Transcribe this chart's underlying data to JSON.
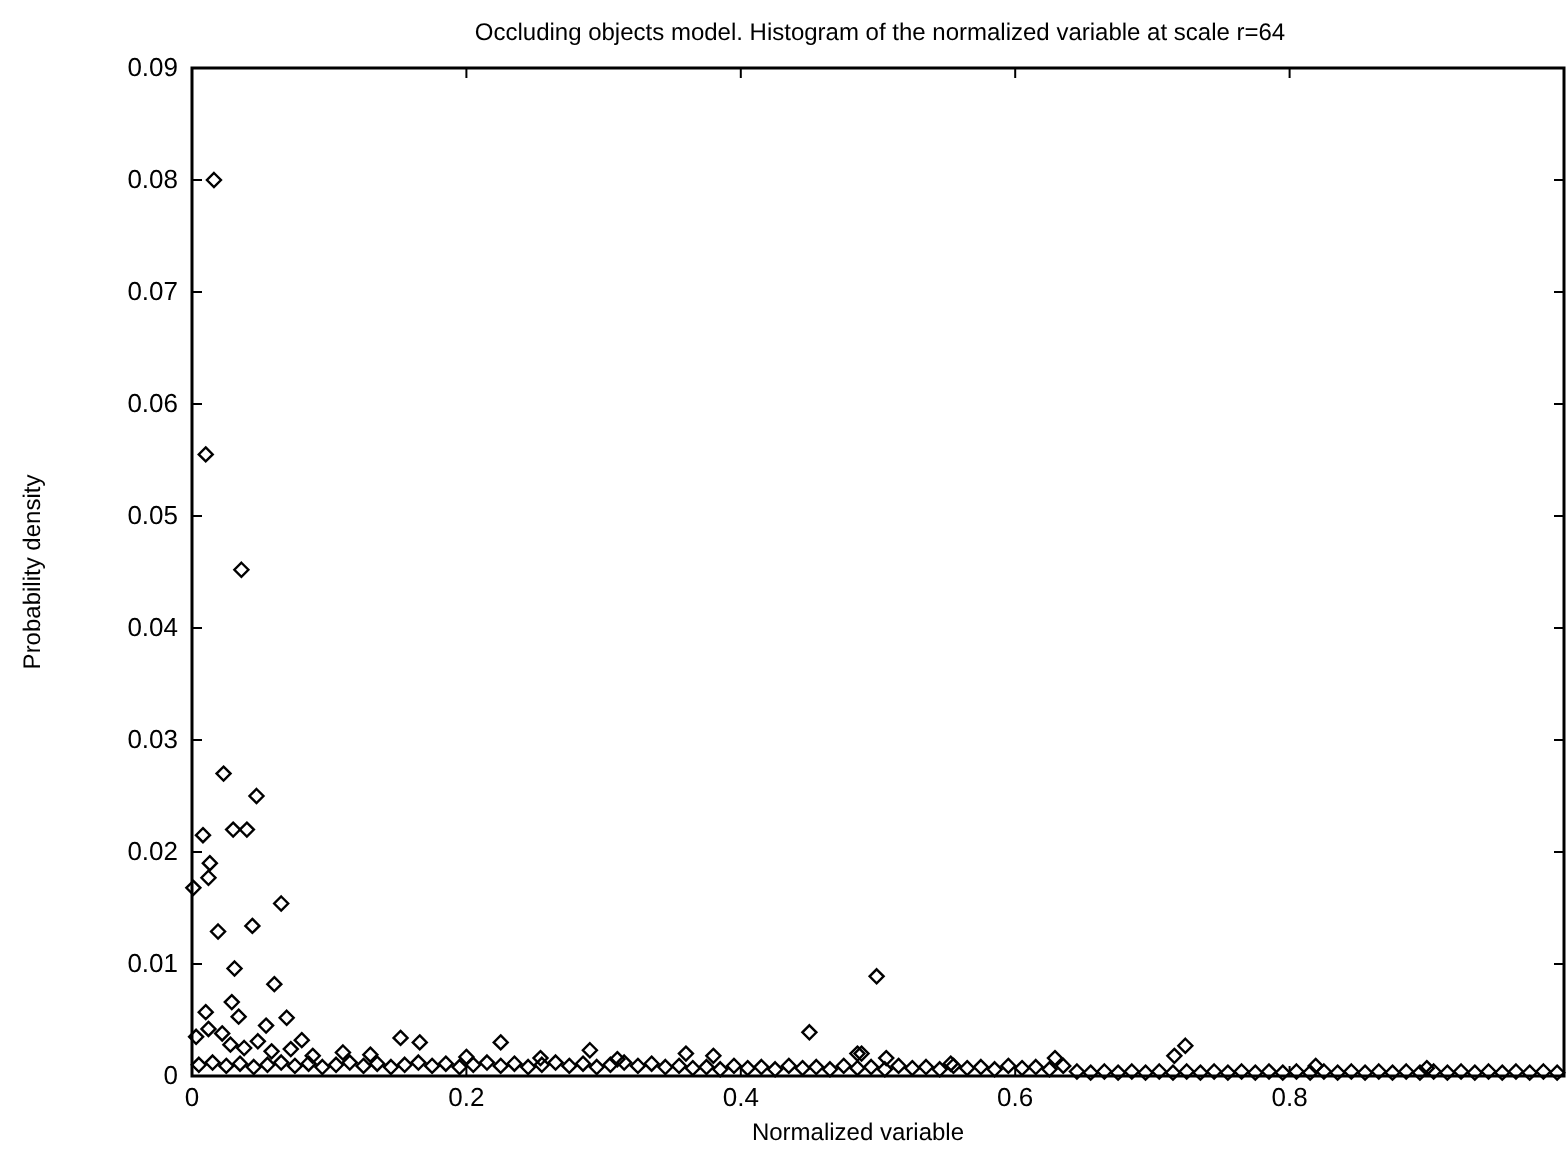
{
  "chart_data": {
    "type": "scatter",
    "title": "Occluding objects model. Histogram of the normalized variable at scale r=64",
    "xlabel": "Normalized variable",
    "ylabel": "Probability density",
    "xlim": [
      0,
      1
    ],
    "ylim": [
      0,
      0.09
    ],
    "xticks": [
      0,
      0.2,
      0.4,
      0.6,
      0.8,
      {
        "value": 1,
        "label": null
      }
    ],
    "yticks": [
      0,
      0.01,
      0.02,
      0.03,
      0.04,
      0.05,
      0.06,
      0.07,
      0.08,
      0.09
    ],
    "marker": "diamond",
    "series": [
      {
        "color": "#000000",
        "x": [
          0.016,
          0.01,
          0.036,
          0.023,
          0.047,
          0.03,
          0.04,
          0.008,
          0.013,
          0.012,
          0.001,
          0.065,
          0.044,
          0.019,
          0.031,
          0.06,
          0.499,
          0.45,
          0.225,
          0.01,
          0.029,
          0.034,
          0.069,
          0.054,
          0.08,
          0.152,
          0.166,
          0.29,
          0.254,
          0.36,
          0.38,
          0.485,
          0.506,
          0.724,
          0.716,
          0.488,
          0.629,
          0.9,
          0.553,
          0.819,
          0.005,
          0.015,
          0.025,
          0.035,
          0.045,
          0.055,
          0.065,
          0.075,
          0.085,
          0.095,
          0.105,
          0.115,
          0.125,
          0.135,
          0.145,
          0.155,
          0.165,
          0.175,
          0.185,
          0.195,
          0.205,
          0.215,
          0.225,
          0.235,
          0.245,
          0.255,
          0.265,
          0.275,
          0.285,
          0.295,
          0.305,
          0.315,
          0.325,
          0.335,
          0.345,
          0.355,
          0.365,
          0.375,
          0.385,
          0.395,
          0.405,
          0.415,
          0.425,
          0.435,
          0.445,
          0.455,
          0.465,
          0.475,
          0.485,
          0.495,
          0.505,
          0.515,
          0.525,
          0.535,
          0.545,
          0.555,
          0.565,
          0.575,
          0.585,
          0.595,
          0.605,
          0.615,
          0.625,
          0.635,
          0.645,
          0.655,
          0.665,
          0.675,
          0.685,
          0.695,
          0.705,
          0.715,
          0.725,
          0.735,
          0.745,
          0.755,
          0.765,
          0.775,
          0.785,
          0.795,
          0.805,
          0.815,
          0.825,
          0.835,
          0.845,
          0.855,
          0.865,
          0.875,
          0.885,
          0.895,
          0.905,
          0.915,
          0.925,
          0.935,
          0.945,
          0.955,
          0.965,
          0.975,
          0.985,
          0.995,
          0.003,
          0.012,
          0.022,
          0.028,
          0.038,
          0.048,
          0.058,
          0.072,
          0.088,
          0.11,
          0.13,
          0.2,
          0.31
        ],
        "values": [
          0.08,
          0.0555,
          0.0452,
          0.027,
          0.025,
          0.022,
          0.022,
          0.0215,
          0.019,
          0.0177,
          0.0168,
          0.0154,
          0.0134,
          0.0129,
          0.0096,
          0.0082,
          0.0089,
          0.0039,
          0.003,
          0.0057,
          0.0066,
          0.0053,
          0.0052,
          0.0045,
          0.0032,
          0.0034,
          0.003,
          0.0023,
          0.0016,
          0.002,
          0.0018,
          0.002,
          0.0016,
          0.0027,
          0.0018,
          0.002,
          0.0016,
          0.0007,
          0.0011,
          0.0009,
          0.001,
          0.0012,
          0.0009,
          0.0011,
          0.0008,
          0.001,
          0.0012,
          0.0009,
          0.0011,
          0.0008,
          0.001,
          0.0012,
          0.0009,
          0.0011,
          0.0008,
          0.001,
          0.0012,
          0.0009,
          0.0011,
          0.0008,
          0.001,
          0.0012,
          0.0009,
          0.0011,
          0.0008,
          0.001,
          0.0012,
          0.0009,
          0.0011,
          0.0008,
          0.001,
          0.0012,
          0.0009,
          0.0011,
          0.0008,
          0.0009,
          0.0007,
          0.0008,
          0.0006,
          0.0009,
          0.0007,
          0.0008,
          0.0006,
          0.0009,
          0.0007,
          0.0008,
          0.0006,
          0.0009,
          0.0007,
          0.0008,
          0.0006,
          0.0009,
          0.0007,
          0.0008,
          0.0006,
          0.0009,
          0.0007,
          0.0008,
          0.0006,
          0.0009,
          0.0007,
          0.0008,
          0.0006,
          0.0009,
          0.0004,
          0.0003,
          0.0004,
          0.0003,
          0.0004,
          0.0003,
          0.0004,
          0.0003,
          0.0004,
          0.0003,
          0.0004,
          0.0003,
          0.0004,
          0.0003,
          0.0004,
          0.0003,
          0.0004,
          0.0003,
          0.0004,
          0.0003,
          0.0004,
          0.0003,
          0.0004,
          0.0003,
          0.0004,
          0.0003,
          0.0004,
          0.0003,
          0.0004,
          0.0003,
          0.0004,
          0.0003,
          0.0004,
          0.0003,
          0.0004,
          0.0003,
          0.0035,
          0.0042,
          0.0038,
          0.0028,
          0.0025,
          0.0031,
          0.0022,
          0.0024,
          0.0018,
          0.0021,
          0.0019,
          0.0017,
          0.0015
        ]
      }
    ]
  }
}
